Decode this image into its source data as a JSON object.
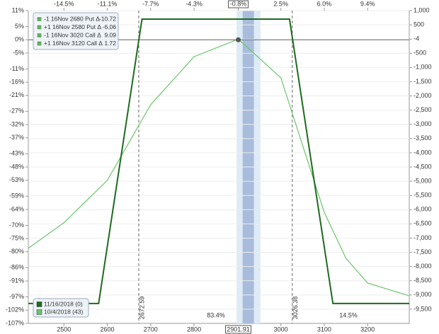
{
  "chart_data": {
    "type": "line",
    "xlim": [
      2418,
      3296
    ],
    "xticks": [
      2500,
      2600,
      2700,
      2800,
      3000,
      3100,
      3200
    ],
    "x2ticks": [
      {
        "value": 2500,
        "label": "-14.5%"
      },
      {
        "value": 2600,
        "label": "-11.1%"
      },
      {
        "value": 2700,
        "label": "-7.7%"
      },
      {
        "value": 2800,
        "label": "-4.3%"
      },
      {
        "value": 2901.91,
        "label": "-0.8%"
      },
      {
        "value": 3000,
        "label": "2.5%"
      },
      {
        "value": 3100,
        "label": "6.0%"
      },
      {
        "value": 3200,
        "label": "9.4%"
      }
    ],
    "cursor_x": 2901.91,
    "ylim": [
      -107,
      11
    ],
    "yticks": [
      {
        "value": 11,
        "label": "11%"
      },
      {
        "value": 5,
        "label": "5%"
      },
      {
        "value": 0,
        "label": "0%"
      },
      {
        "value": -5,
        "label": "-5%"
      },
      {
        "value": -11,
        "label": "-11%"
      },
      {
        "value": -16,
        "label": "-16%"
      },
      {
        "value": -21,
        "label": "-21%"
      },
      {
        "value": -27,
        "label": "-27%"
      },
      {
        "value": -32,
        "label": "-32%"
      },
      {
        "value": -37,
        "label": "-37%"
      },
      {
        "value": -43,
        "label": "-43%"
      },
      {
        "value": -48,
        "label": "-48%"
      },
      {
        "value": -53,
        "label": "-53%"
      },
      {
        "value": -59,
        "label": "-59%"
      },
      {
        "value": -64,
        "label": "-64%"
      },
      {
        "value": -70,
        "label": "-70%"
      },
      {
        "value": -75,
        "label": "-75%"
      },
      {
        "value": -80,
        "label": "-80%"
      },
      {
        "value": -86,
        "label": "-86%"
      },
      {
        "value": -91,
        "label": "-91%"
      },
      {
        "value": -97,
        "label": "-97%"
      },
      {
        "value": -102,
        "label": "-102%"
      },
      {
        "value": -107,
        "label": "-107%"
      }
    ],
    "y2lim": [
      -10000,
      1000
    ],
    "y2ticks": [
      {
        "value": 1000,
        "label": "1,000"
      },
      500,
      -4,
      -500,
      {
        "value": -1000,
        "label": "-1,000"
      },
      {
        "value": -1500,
        "label": "-1,500"
      },
      {
        "value": -2000,
        "label": "-2,000"
      },
      {
        "value": -2500,
        "label": "-2,500"
      },
      {
        "value": -3000,
        "label": "-3,000"
      },
      {
        "value": -3500,
        "label": "-3,500"
      },
      {
        "value": -4000,
        "label": "-4,000"
      },
      {
        "value": -4500,
        "label": "-4,500"
      },
      {
        "value": -5000,
        "label": "-5,000"
      },
      {
        "value": -5500,
        "label": "-5,500"
      },
      {
        "value": -6000,
        "label": "-6,000"
      },
      {
        "value": -6500,
        "label": "-6,500"
      },
      {
        "value": -7000,
        "label": "-7,000"
      },
      {
        "value": -7500,
        "label": "-7,500"
      },
      {
        "value": -8000,
        "label": "-8,000"
      },
      {
        "value": -8500,
        "label": "-8,500"
      },
      {
        "value": -9000,
        "label": "-9,000"
      },
      {
        "value": -9500,
        "label": "-9,500"
      }
    ],
    "grid": true,
    "series": [
      {
        "name": "11/16/2018 (0)",
        "color": "#1e6b1e",
        "axis": "y2",
        "x": [
          2418,
          2580,
          2680,
          3020,
          3120,
          3296
        ],
        "values": [
          -9300,
          -9300,
          700,
          700,
          -9300,
          -9300
        ]
      },
      {
        "name": "10/4/2018 (43)",
        "color": "#6cc46c",
        "axis": "y2",
        "x": [
          2418,
          2500,
          2600,
          2700,
          2800,
          2901.91,
          3000,
          3050,
          3100,
          3150,
          3200,
          3296
        ],
        "values": [
          -7360,
          -6460,
          -4970,
          -2310,
          -620,
          -4,
          -1360,
          -3730,
          -6090,
          -7710,
          -8580,
          -9030
        ]
      }
    ],
    "breakevens": [
      {
        "value": 2672.59,
        "label": "2672.59"
      },
      {
        "value": 3026.38,
        "label": "3026.38"
      }
    ],
    "highlight": [
      2912,
      2938
    ],
    "highlight_outer": [
      2898,
      2953
    ],
    "zone_labels": [
      "83.4%",
      "14.5%"
    ],
    "positions": [
      {
        "label": "-1 16Nov 2680 Put Δ",
        "delta": -10.72
      },
      {
        "label": "+1 16Nov 2580 Put Δ",
        "delta": -6.06
      },
      {
        "label": "-1 16Nov 3020 Call Δ",
        "delta": 9.09
      },
      {
        "label": "+1 16Nov 3120 Call Δ",
        "delta": 1.72
      }
    ]
  }
}
